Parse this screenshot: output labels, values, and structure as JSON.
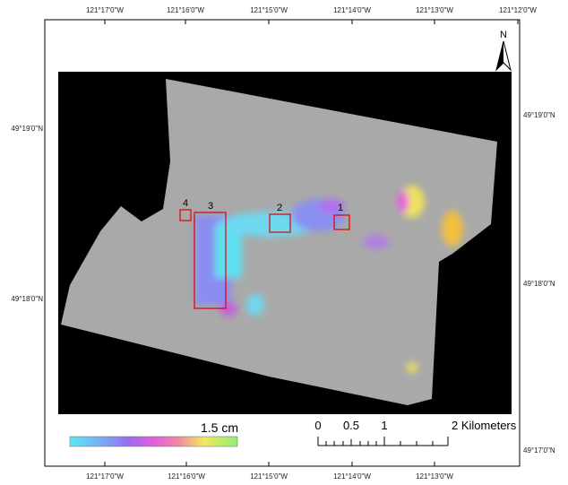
{
  "map": {
    "top_labels": [
      "121°17'0\"W",
      "121°16'0\"W",
      "121°15'0\"W",
      "121°14'0\"W",
      "121°13'0\"W",
      "121°12'0\"W"
    ],
    "bottom_labels": [
      "121°17'0\"W",
      "121°16'0\"W",
      "121°15'0\"W",
      "121°14'0\"W",
      "121°13'0\"W"
    ],
    "left_labels": [
      "49°19'0\"N",
      "49°18'0\"N"
    ],
    "right_labels": [
      "49°19'0\"N",
      "49°18'0\"N",
      "49°17'0\"N"
    ],
    "north": "N",
    "boxes": [
      "1",
      "2",
      "3",
      "4"
    ],
    "legend": "1.5 cm",
    "scale_labels": [
      "0",
      "0.5",
      "1",
      "2 Kilometers"
    ]
  }
}
